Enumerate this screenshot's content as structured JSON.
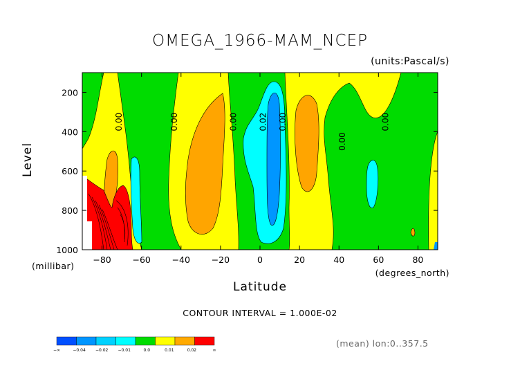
{
  "chart_data": {
    "type": "heatmap",
    "title": "OMEGA_1966-MAM_NCEP",
    "units_label": "(units:Pascal/s)",
    "xlabel": "Latitude",
    "x_units_label": "(degrees_north)",
    "ylabel": "Level",
    "y_units_label": "(millibar)",
    "xlim": [
      -90,
      90
    ],
    "ylim": [
      1000,
      100
    ],
    "x_ticks": [
      -80,
      -60,
      -40,
      -20,
      0,
      20,
      40,
      60,
      80
    ],
    "x_tick_labels": [
      "-80",
      "-60",
      "-40",
      "-20",
      "0",
      "20",
      "40",
      "60",
      "80"
    ],
    "y_ticks": [
      200,
      400,
      600,
      800,
      1000
    ],
    "y_tick_labels": [
      "200",
      "400",
      "600",
      "800",
      "1000"
    ],
    "contour_interval_label": "CONTOUR INTERVAL = 1.000E-02",
    "footer_label": "(mean) lon:0..357.5",
    "contour_labels": [
      {
        "text": "0.00",
        "lat": -70,
        "level": 350
      },
      {
        "text": "0.00",
        "lat": -42,
        "level": 350
      },
      {
        "text": "0.00",
        "lat": -12,
        "level": 350
      },
      {
        "text": "0.02",
        "lat": 3,
        "level": 350
      },
      {
        "text": "0.00",
        "lat": 13,
        "level": 350
      },
      {
        "text": "0.00",
        "lat": 43,
        "level": 450
      },
      {
        "text": "0.00",
        "lat": 65,
        "level": 350
      }
    ],
    "colorbar": {
      "colors": [
        "#0050ff",
        "#0096ff",
        "#00d2ff",
        "#00ffff",
        "#00dc00",
        "#ffff00",
        "#ffaa00",
        "#ff0000"
      ],
      "labels": [
        "-∞",
        "-0.04",
        "-0.02",
        "-0.01",
        "0.0",
        "0.01",
        "0.02",
        "∞"
      ]
    },
    "levels": {
      "green": "#00dc00",
      "yellow": "#ffff00",
      "orange": "#ffa500",
      "red": "#ff0000",
      "cyan": "#00ffff",
      "blue": "#0096ff"
    }
  }
}
